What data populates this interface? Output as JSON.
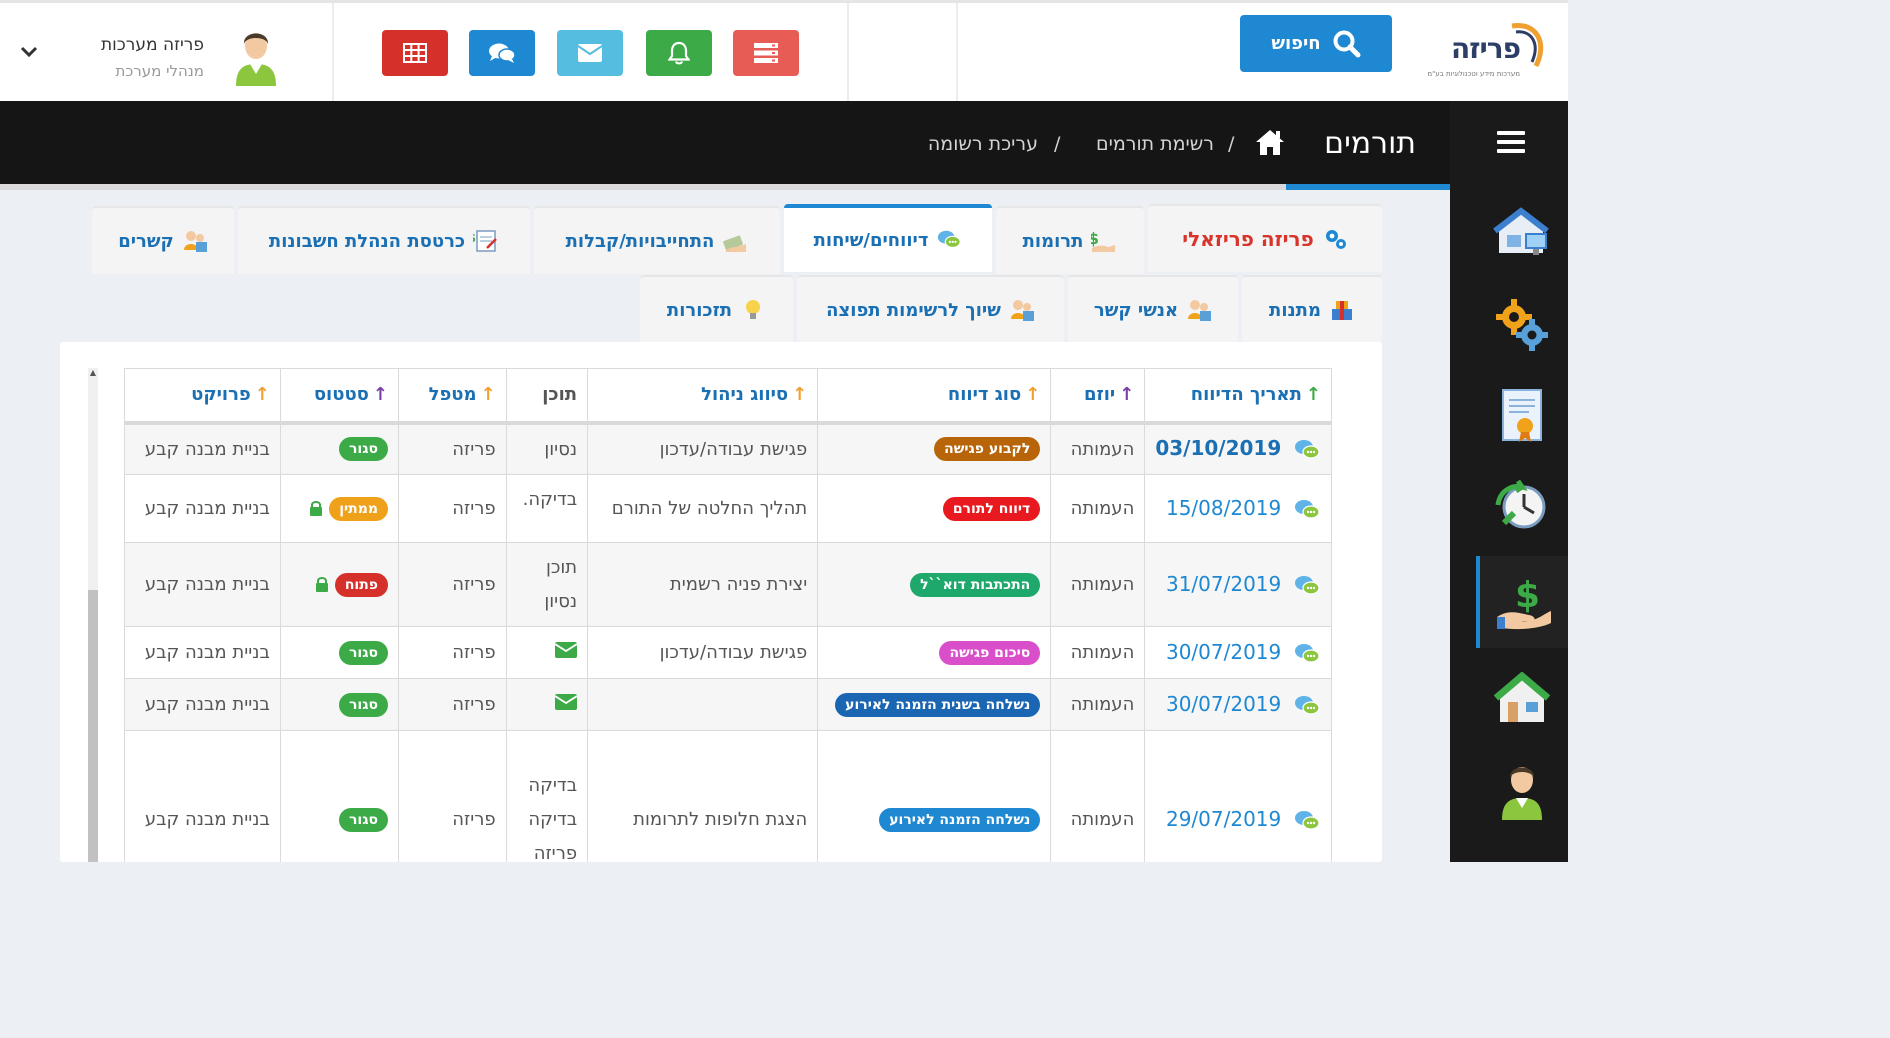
{
  "logo": {
    "text": "פריזה",
    "subtitle": "מערכות מידע וטכנולוגיות בע\"מ"
  },
  "search": {
    "label": "חיפוש"
  },
  "toolbar": {
    "buttons": [
      {
        "icon": "server-icon",
        "color": "#e85c56"
      },
      {
        "icon": "bell-icon",
        "color": "#3daa48"
      },
      {
        "icon": "envelope-icon",
        "color": "#55bde0"
      },
      {
        "icon": "chat-icon",
        "color": "#1e88d2"
      },
      {
        "icon": "table-icon",
        "color": "#d6302b"
      }
    ]
  },
  "user": {
    "name": "פריזה מערכות",
    "role": "מנהלי מערכת"
  },
  "header": {
    "title": "תורמים",
    "breadcrumb": [
      "רשימת תורמים",
      "עריכת רשומה"
    ]
  },
  "sidebar": {
    "items": [
      "house-network-icon",
      "gears-icon",
      "certificate-icon",
      "clock-icon",
      "donation-icon",
      "house-icon",
      "user-icon"
    ],
    "active_index": 4
  },
  "tabs": {
    "row1": [
      {
        "label": "פריזה פריזאלי",
        "icon": "gears-icon"
      },
      {
        "label": "תרומות",
        "icon": "donation-icon"
      },
      {
        "label": "דיווחים/שיחות",
        "icon": "chat-icon"
      },
      {
        "label": "התחייבויות/קבלות",
        "icon": "money-icon"
      },
      {
        "label": "כרטסת הנהלת חשבונות",
        "icon": "ledger-icon"
      },
      {
        "label": "קשרים",
        "icon": "people-icon"
      }
    ],
    "row2": [
      {
        "label": "מתנות",
        "icon": "gift-icon"
      },
      {
        "label": "אנשי קשר",
        "icon": "people-icon"
      },
      {
        "label": "שיוך לרשימות תפוצה",
        "icon": "people-icon"
      },
      {
        "label": "תזכורות",
        "icon": "bulb-icon"
      }
    ],
    "active": "דיווחים/שיחות"
  },
  "table": {
    "columns": [
      {
        "label": "תאריך הדיווח",
        "sort_color": "#3daa48"
      },
      {
        "label": "יוזם",
        "sort_color": "#7b3fa8"
      },
      {
        "label": "סוג דיווח",
        "sort_color": "#f0a030"
      },
      {
        "label": "סיווג ניהול",
        "sort_color": "#f0a030"
      },
      {
        "label": "תוכן",
        "sort_color": ""
      },
      {
        "label": "מטפל",
        "sort_color": "#f0a030"
      },
      {
        "label": "סטטוס",
        "sort_color": "#7b3fa8"
      },
      {
        "label": "פרויקט",
        "sort_color": "#f0a030"
      }
    ],
    "rows": [
      {
        "date": "03/10/2019",
        "initiator": "העמותה",
        "type": "לקבוע פגישה",
        "type_color": "#b8650a",
        "classification": "פגישת עבודה/עדכון",
        "content": "נסיון",
        "handler": "פריזה",
        "status": "סגור",
        "status_color": "#3daa48",
        "locked": false,
        "project": "בניית מבנה קבע"
      },
      {
        "date": "15/08/2019",
        "initiator": "העמותה",
        "type": "דיווח לתורם",
        "type_color": "#e8191f",
        "classification": "תהליך החלטה של התורם",
        "content": "בדיקה.",
        "handler": "פריזה",
        "status": "ממתין",
        "status_color": "#f0a11a",
        "locked": true,
        "project": "בניית מבנה קבע"
      },
      {
        "date": "31/07/2019",
        "initiator": "העמותה",
        "type": "התכתבות דוא``ל",
        "type_color": "#1fa86b",
        "classification": "יצירת פניה רשמית",
        "content": "תוכן נסיון",
        "handler": "פריזה",
        "status": "פתוח",
        "status_color": "#d6302b",
        "locked": true,
        "project": "בניית מבנה קבע"
      },
      {
        "date": "30/07/2019",
        "initiator": "העמותה",
        "type": "סיכום פגישה",
        "type_color": "#d94fc9",
        "classification": "פגישת עבודה/עדכון",
        "content": "",
        "content_icon": "envelope-icon",
        "handler": "פריזה",
        "status": "סגור",
        "status_color": "#3daa48",
        "locked": false,
        "project": "בניית מבנה קבע"
      },
      {
        "date": "30/07/2019",
        "initiator": "העמותה",
        "type": "נשלחה בשנית הזמנה לאירוע",
        "type_color": "#1a66b3",
        "classification": "",
        "content": "",
        "content_icon": "envelope-icon",
        "handler": "פריזה",
        "status": "סגור",
        "status_color": "#3daa48",
        "locked": false,
        "project": "בניית מבנה קבע"
      },
      {
        "date": "29/07/2019",
        "initiator": "העמותה",
        "type": "נשלחה הזמנה לאירוע",
        "type_color": "#1e88d2",
        "classification": "הצגת חלופות לתרומות",
        "content": "בדיקה בדיקה פריזה",
        "handler": "פריזה",
        "status": "סגור",
        "status_color": "#3daa48",
        "locked": false,
        "project": "בניית מבנה קבע"
      }
    ]
  }
}
